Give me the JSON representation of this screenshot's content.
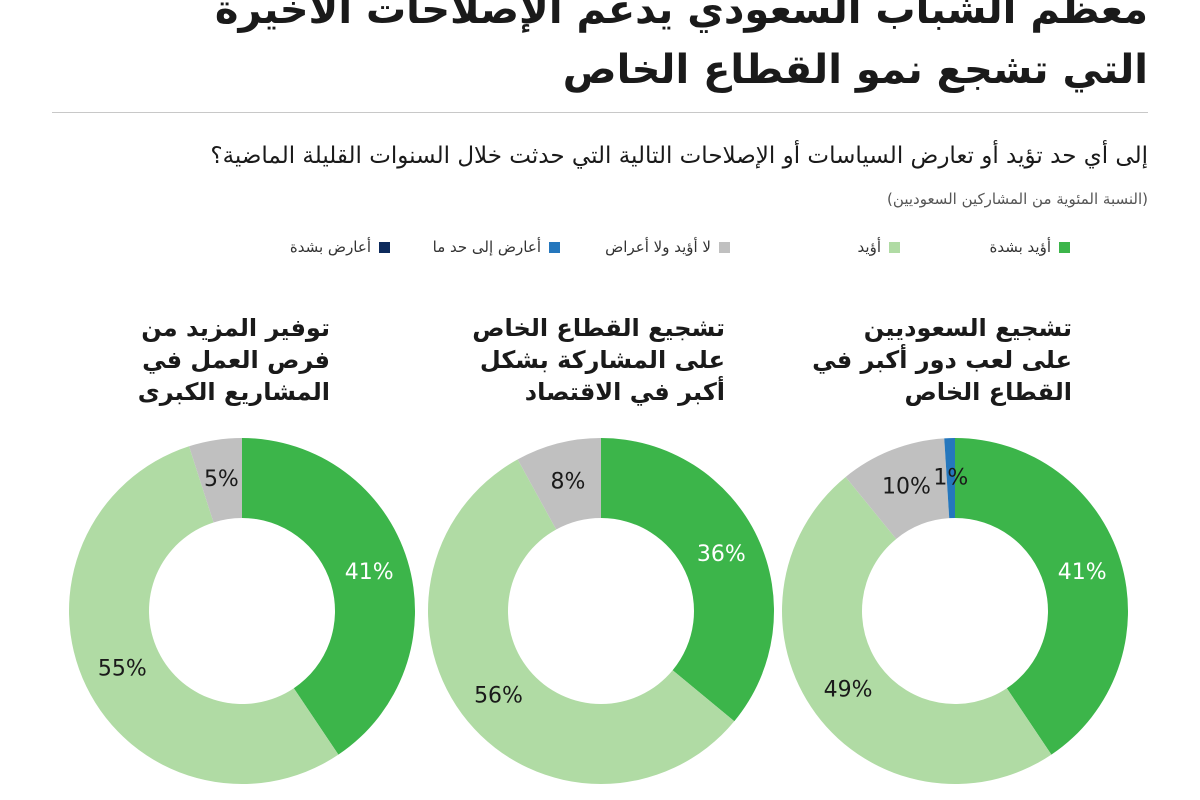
{
  "header": {
    "title_line1": "معظم الشباب السعودي يدعم الإصلاحات الأخيرة",
    "title_line2": "التي تشجع نمو القطاع الخاص",
    "question": "إلى أي حد تؤيد أو تعارض السياسات أو الإصلاحات التالية التي حدثت خلال السنوات القليلة الماضية؟",
    "note": "(النسبة المئوية من المشاركين السعوديين)"
  },
  "legend": [
    {
      "label": "أؤيد بشدة",
      "color": "#3cb54a"
    },
    {
      "label": "أؤيد",
      "color": "#b0dba4"
    },
    {
      "label": "لا أؤيد ولا أعراض",
      "color": "#c0c0c0"
    },
    {
      "label": "أعارض إلى حد ما",
      "color": "#2577bd"
    },
    {
      "label": "أعارض بشدة",
      "color": "#0d2a5c"
    }
  ],
  "chart_data": [
    {
      "type": "pie",
      "donut": true,
      "title_lines": [
        "تشجيع السعوديين",
        "على لعب دور أكبر في",
        "القطاع الخاص"
      ],
      "categories": [
        "أؤيد بشدة",
        "أؤيد",
        "لا أؤيد ولا أعراض",
        "أعارض إلى حد ما",
        "أعارض بشدة"
      ],
      "values": [
        41,
        49,
        10,
        1,
        0
      ],
      "labels": [
        "41%",
        "49%",
        "10%",
        "1%",
        ""
      ]
    },
    {
      "type": "pie",
      "donut": true,
      "title_lines": [
        "تشجيع القطاع الخاص",
        "على المشاركة بشكل",
        "أكبر في الاقتصاد"
      ],
      "categories": [
        "أؤيد بشدة",
        "أؤيد",
        "لا أؤيد ولا أعراض",
        "أعارض إلى حد ما",
        "أعارض بشدة"
      ],
      "values": [
        36,
        56,
        8,
        0,
        0
      ],
      "labels": [
        "36%",
        "56%",
        "8%",
        "",
        ""
      ]
    },
    {
      "type": "pie",
      "donut": true,
      "title_lines": [
        "توفير المزيد من",
        "فرص العمل في",
        "المشاريع الكبرى"
      ],
      "categories": [
        "أؤيد بشدة",
        "أؤيد",
        "لا أؤيد ولا أعراض",
        "أعارض إلى حد ما",
        "أعارض بشدة"
      ],
      "values": [
        41,
        55,
        5,
        0,
        0
      ],
      "labels": [
        "41%",
        "55%",
        "5%",
        "",
        ""
      ]
    }
  ]
}
